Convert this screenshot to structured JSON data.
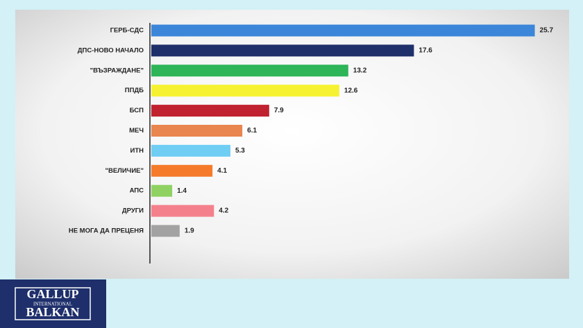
{
  "chart_data": {
    "type": "bar",
    "orientation": "horizontal",
    "categories": [
      "ГЕРБ-СДС",
      "ДПС-НОВО НАЧАЛО",
      "\"ВЪЗРАЖДАНЕ\"",
      "ППДБ",
      "БСП",
      "МЕЧ",
      "ИТН",
      "\"ВЕЛИЧИЕ\"",
      "АПС",
      "ДРУГИ",
      "НЕ МОГА ДА ПРЕЦЕНЯ"
    ],
    "values": [
      25.7,
      17.6,
      13.2,
      12.6,
      7.9,
      6.1,
      5.3,
      4.1,
      1.4,
      4.2,
      1.9
    ],
    "colors": [
      "#3b86d9",
      "#1f2f6a",
      "#2db558",
      "#f6f232",
      "#c1222f",
      "#e9854f",
      "#70cdf3",
      "#f57b2b",
      "#8fd262",
      "#f4808b",
      "#a2a2a2"
    ]
  },
  "logo": {
    "line1": "GALLUP",
    "line2": "INTERNATIONAL",
    "line3": "BALKAN"
  }
}
